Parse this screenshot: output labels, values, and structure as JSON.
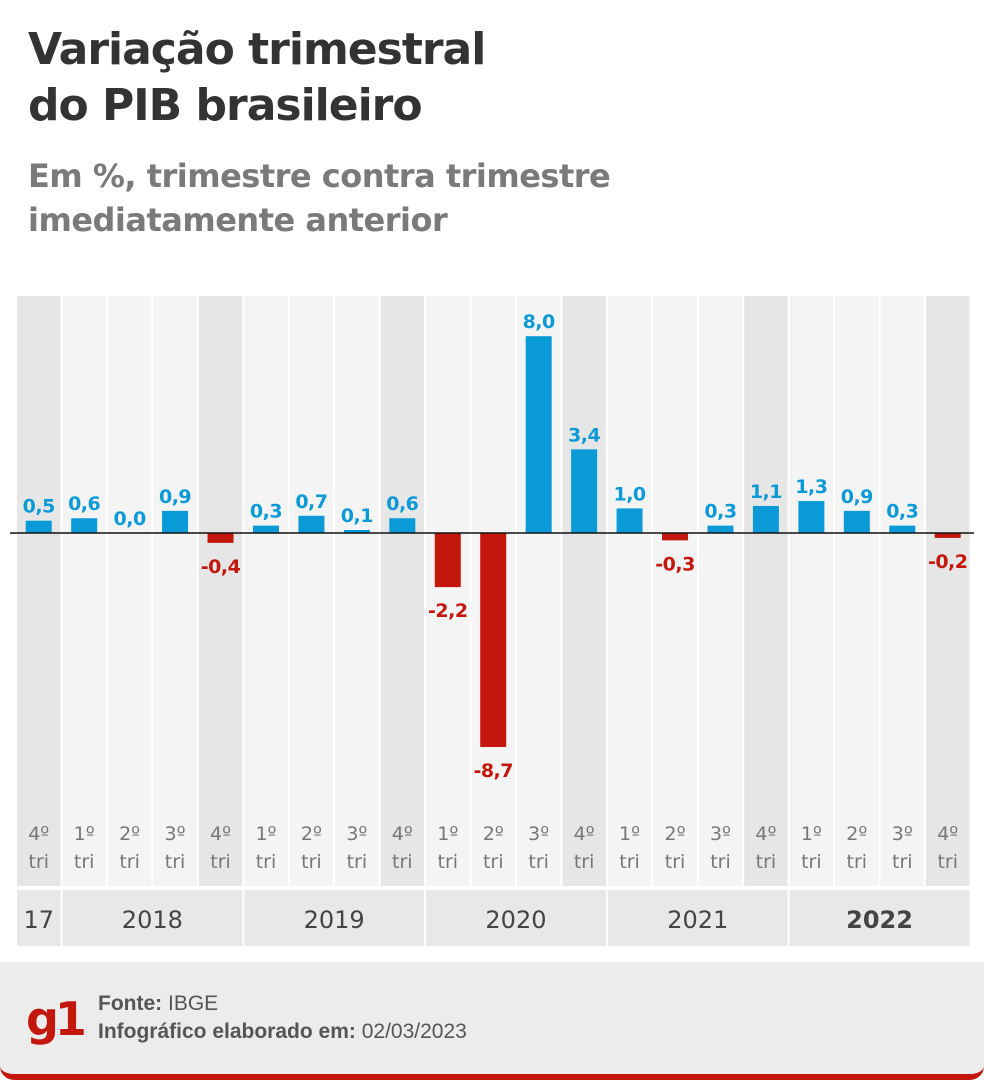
{
  "title": [
    "Variação trimestral",
    "do PIB brasileiro"
  ],
  "subtitle": [
    "Em %, trimestre contra trimestre",
    "imediatamente anterior"
  ],
  "colors": {
    "positive": "#0b9ad8",
    "negative": "#c4170c",
    "text_dark": "#333333",
    "band_light": "#f4f4f4",
    "band_dark": "#e6e6e6",
    "axis": "#111111",
    "tick": "#777777"
  },
  "chart_data": {
    "type": "bar",
    "categories": [
      [
        "4º",
        "tri"
      ],
      [
        "1º",
        "tri"
      ],
      [
        "2º",
        "tri"
      ],
      [
        "3º",
        "tri"
      ],
      [
        "4º",
        "tri"
      ],
      [
        "1º",
        "tri"
      ],
      [
        "2º",
        "tri"
      ],
      [
        "3º",
        "tri"
      ],
      [
        "4º",
        "tri"
      ],
      [
        "1º",
        "tri"
      ],
      [
        "2º",
        "tri"
      ],
      [
        "3º",
        "tri"
      ],
      [
        "4º",
        "tri"
      ],
      [
        "1º",
        "tri"
      ],
      [
        "2º",
        "tri"
      ],
      [
        "3º",
        "tri"
      ],
      [
        "4º",
        "tri"
      ],
      [
        "1º",
        "tri"
      ],
      [
        "2º",
        "tri"
      ],
      [
        "3º",
        "tri"
      ],
      [
        "4º",
        "tri"
      ]
    ],
    "values": [
      0.5,
      0.6,
      0.0,
      0.9,
      -0.4,
      0.3,
      0.7,
      0.1,
      0.6,
      -2.2,
      -8.7,
      8.0,
      3.4,
      1.0,
      -0.3,
      0.3,
      1.1,
      1.3,
      0.9,
      0.3,
      -0.2
    ],
    "labels": [
      "0,5",
      "0,6",
      "0,0",
      "0,9",
      "-0,4",
      "0,3",
      "0,7",
      "0,1",
      "0,6",
      "-2,2",
      "-8,7",
      "8,0",
      "3,4",
      "1,0",
      "-0,3",
      "0,3",
      "1,1",
      "1,3",
      "0,9",
      "0,3",
      "-0,2"
    ],
    "years": [
      {
        "label": "17",
        "start": 0,
        "end": 0,
        "bold": false
      },
      {
        "label": "2018",
        "start": 1,
        "end": 4,
        "bold": false
      },
      {
        "label": "2019",
        "start": 5,
        "end": 8,
        "bold": false
      },
      {
        "label": "2020",
        "start": 9,
        "end": 12,
        "bold": false
      },
      {
        "label": "2021",
        "start": 13,
        "end": 16,
        "bold": false
      },
      {
        "label": "2022",
        "start": 17,
        "end": 20,
        "bold": true
      }
    ],
    "ylim": [
      -8.7,
      8.0
    ],
    "grid": false
  },
  "footer": {
    "logo": "g1",
    "source_label": "Fonte:",
    "source_value": "IBGE",
    "date_label": "Infográfico elaborado em:",
    "date_value": "02/03/2023"
  }
}
